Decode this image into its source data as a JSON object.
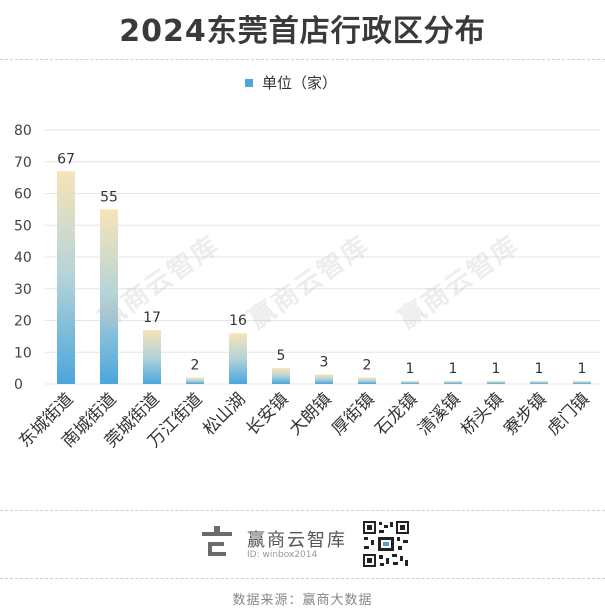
{
  "title": "2024东莞首店行政区分布",
  "chart_data": {
    "type": "bar",
    "categories": [
      "东城街道",
      "南城街道",
      "莞城街道",
      "万江街道",
      "松山湖",
      "长安镇",
      "大朗镇",
      "厚街镇",
      "石龙镇",
      "清溪镇",
      "桥头镇",
      "寮步镇",
      "虎门镇"
    ],
    "series": [
      {
        "name": "单位（家）",
        "values": [
          67,
          55,
          17,
          2,
          16,
          5,
          3,
          2,
          1,
          1,
          1,
          1,
          1
        ]
      }
    ],
    "ylim": [
      0,
      80
    ],
    "yticks": [
      "0",
      "10",
      "20",
      "30",
      "40",
      "50",
      "60",
      "70",
      "80"
    ],
    "grid": true,
    "legend_position": "top-center",
    "colors": {
      "bar_top": "#f7e4b8",
      "bar_bottom": "#4aa6dd",
      "legend": "#4aa6dd",
      "grid": "#e6e6e6"
    }
  },
  "brand": {
    "name": "赢商云智库",
    "id": "ID: winbox2014",
    "logo_icon": "winshang-logo-icon",
    "qr_icon": "qr-code-icon"
  },
  "watermark": "赢商云智库",
  "source": "数据来源：赢商大数据"
}
